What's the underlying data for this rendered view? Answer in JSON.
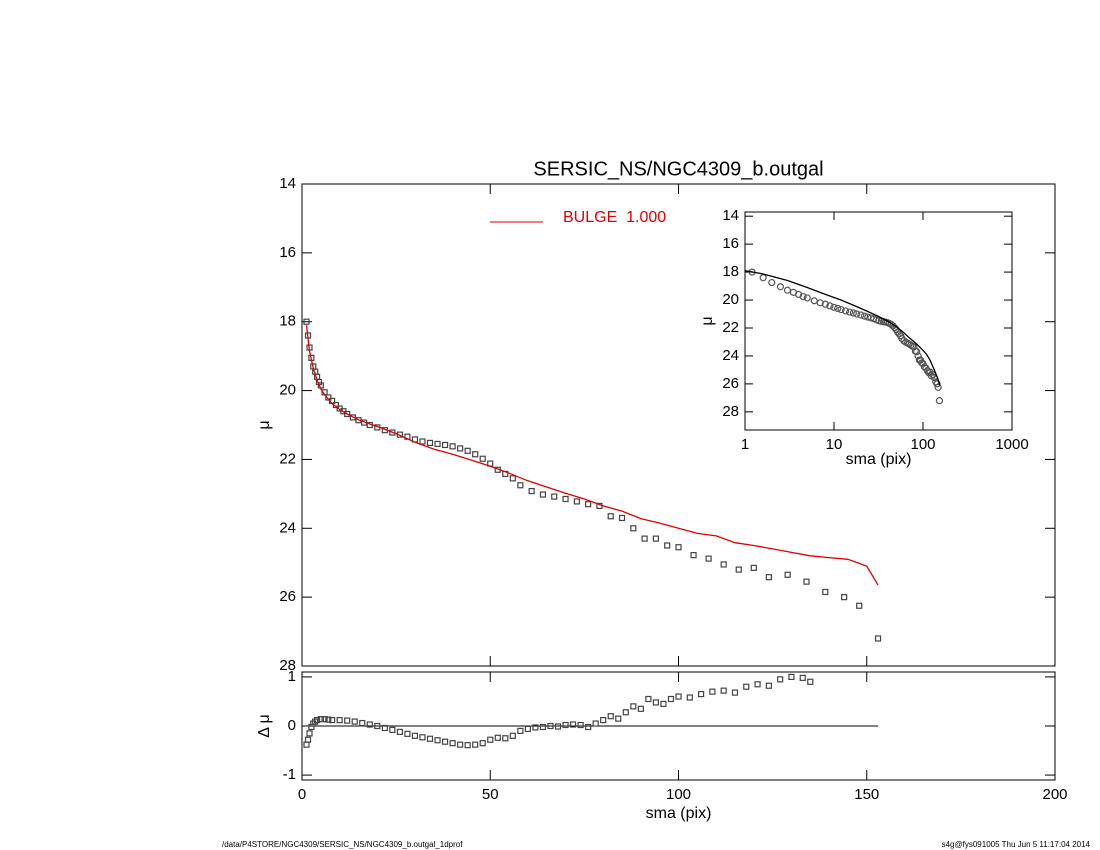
{
  "chart_data": [
    {
      "type": "scatter",
      "title": "SERSIC_NS/NGC4309_b.outgal",
      "ylabel": "μ",
      "xlim": [
        0,
        200
      ],
      "xticks": [
        0,
        50,
        100,
        150,
        200
      ],
      "ylim": [
        14,
        28
      ],
      "y_inverted": true,
      "yticks": [
        14,
        16,
        18,
        20,
        22,
        24,
        26,
        28
      ],
      "legend": "top-center",
      "series": [
        {
          "marker": "square",
          "color": "#444444",
          "x": [
            1.2,
            1.6,
            2,
            2.5,
            3,
            3.5,
            4,
            4.5,
            5,
            6,
            7,
            8,
            9,
            10,
            11,
            12,
            13.5,
            15,
            16.5,
            18,
            20,
            22,
            24,
            26,
            28,
            30,
            32,
            34,
            36,
            38,
            40,
            42,
            44,
            46,
            48,
            50,
            52,
            54,
            56,
            58,
            61,
            64,
            67,
            70,
            73,
            76,
            79,
            82,
            85,
            88,
            91,
            94,
            97,
            100,
            104,
            108,
            112,
            116,
            120,
            124,
            129,
            134,
            139,
            144,
            148,
            153
          ],
          "values": [
            18.0,
            18.4,
            18.75,
            19.05,
            19.3,
            19.45,
            19.6,
            19.75,
            19.85,
            20.05,
            20.2,
            20.3,
            20.42,
            20.52,
            20.6,
            20.68,
            20.78,
            20.86,
            20.93,
            21.0,
            21.07,
            21.15,
            21.22,
            21.28,
            21.34,
            21.42,
            21.48,
            21.52,
            21.55,
            21.58,
            21.62,
            21.68,
            21.75,
            21.85,
            21.98,
            22.12,
            22.3,
            22.42,
            22.55,
            22.75,
            22.92,
            23.02,
            23.08,
            23.15,
            23.22,
            23.3,
            23.35,
            23.65,
            23.7,
            24.0,
            24.3,
            24.3,
            24.5,
            24.55,
            24.78,
            24.88,
            25.05,
            25.2,
            25.15,
            25.42,
            25.35,
            25.55,
            25.85,
            26.0,
            26.25,
            27.2
          ]
        },
        {
          "name": "BULGE  1.000",
          "style": "line",
          "color": "#e00000",
          "x": [
            1.2,
            2,
            3,
            4,
            5,
            6,
            8,
            10,
            12,
            15,
            18,
            21,
            25,
            30,
            35,
            40,
            45,
            50,
            55,
            60,
            65,
            70,
            75,
            80,
            85,
            90,
            95,
            100,
            105,
            110,
            115,
            120,
            125,
            130,
            135,
            140,
            145,
            150,
            153
          ],
          "values": [
            18.1,
            18.85,
            19.35,
            19.7,
            19.95,
            20.12,
            20.38,
            20.55,
            20.68,
            20.85,
            20.97,
            21.08,
            21.25,
            21.5,
            21.7,
            21.85,
            22.02,
            22.2,
            22.4,
            22.62,
            22.8,
            22.98,
            23.15,
            23.35,
            23.5,
            23.72,
            23.85,
            24.0,
            24.15,
            24.22,
            24.42,
            24.5,
            24.6,
            24.7,
            24.8,
            24.85,
            24.9,
            25.1,
            25.65
          ]
        }
      ]
    },
    {
      "type": "scatter",
      "xlabel": "sma (pix)",
      "ylabel": "Δ μ",
      "xlim": [
        0,
        200
      ],
      "xticks": [
        0,
        50,
        100,
        150,
        200
      ],
      "ylim": [
        -1.1,
        1.1
      ],
      "yticks": [
        -1,
        0,
        1
      ],
      "zero_line": {
        "y": 0,
        "x": [
          0,
          153
        ]
      },
      "series": [
        {
          "marker": "square",
          "color": "#444444",
          "x": [
            1.2,
            1.6,
            2,
            2.5,
            3,
            3.5,
            4,
            5,
            6,
            7,
            8,
            10,
            12,
            14,
            16,
            18,
            20,
            22,
            24,
            26,
            28,
            30,
            32,
            34,
            36,
            38,
            40,
            42,
            44,
            46,
            48,
            50,
            52,
            54,
            56,
            58,
            60,
            62,
            64,
            66,
            68,
            70,
            72,
            74,
            76,
            78,
            80,
            82,
            84,
            86,
            88,
            90,
            92,
            94,
            96,
            98,
            100,
            103,
            106,
            109,
            112,
            115,
            118,
            121,
            124,
            127,
            130,
            133,
            135
          ],
          "values": [
            -0.38,
            -0.28,
            -0.15,
            -0.02,
            0.05,
            0.09,
            0.12,
            0.14,
            0.14,
            0.13,
            0.12,
            0.12,
            0.11,
            0.09,
            0.06,
            0.03,
            0.0,
            -0.04,
            -0.08,
            -0.12,
            -0.16,
            -0.2,
            -0.23,
            -0.26,
            -0.29,
            -0.32,
            -0.35,
            -0.38,
            -0.39,
            -0.38,
            -0.35,
            -0.28,
            -0.24,
            -0.25,
            -0.2,
            -0.1,
            -0.06,
            -0.03,
            -0.02,
            0.0,
            -0.01,
            0.02,
            0.03,
            0.02,
            -0.02,
            0.05,
            0.12,
            0.2,
            0.15,
            0.28,
            0.4,
            0.35,
            0.55,
            0.48,
            0.45,
            0.55,
            0.6,
            0.58,
            0.65,
            0.7,
            0.72,
            0.68,
            0.8,
            0.85,
            0.82,
            0.95,
            1.0,
            0.98,
            0.9
          ]
        }
      ]
    },
    {
      "type": "scatter",
      "xlabel": "sma (pix)",
      "ylabel": "μ",
      "xlog": true,
      "xlim": [
        1,
        1000
      ],
      "xticks": [
        1,
        10,
        100,
        1000
      ],
      "ylim": [
        13.7,
        29.3
      ],
      "y_inverted": true,
      "yticks": [
        14,
        16,
        18,
        20,
        22,
        24,
        26,
        28
      ],
      "series": [
        {
          "marker": "circle",
          "color": "#555555",
          "x": [
            1.2,
            1.6,
            2,
            2.5,
            3,
            3.5,
            4,
            4.5,
            5,
            6,
            7,
            8,
            9,
            10,
            11,
            12,
            13.5,
            15,
            16.5,
            18,
            20,
            22,
            24,
            26,
            28,
            30,
            32,
            34,
            36,
            38,
            40,
            42,
            44,
            46,
            48,
            50,
            52,
            54,
            56,
            58,
            61,
            64,
            67,
            70,
            73,
            76,
            79,
            82,
            85,
            88,
            91,
            94,
            97,
            100,
            104,
            108,
            112,
            116,
            120,
            124,
            129,
            134,
            139,
            144,
            148,
            153
          ],
          "values": [
            18.0,
            18.4,
            18.75,
            19.05,
            19.3,
            19.45,
            19.6,
            19.75,
            19.85,
            20.05,
            20.2,
            20.3,
            20.42,
            20.52,
            20.6,
            20.68,
            20.78,
            20.86,
            20.93,
            21.0,
            21.07,
            21.15,
            21.22,
            21.28,
            21.34,
            21.42,
            21.48,
            21.52,
            21.55,
            21.58,
            21.62,
            21.68,
            21.75,
            21.85,
            21.98,
            22.12,
            22.3,
            22.42,
            22.55,
            22.75,
            22.92,
            23.02,
            23.08,
            23.15,
            23.22,
            23.3,
            23.35,
            23.65,
            23.7,
            24.0,
            24.3,
            24.3,
            24.5,
            24.55,
            24.78,
            24.88,
            25.05,
            25.2,
            25.15,
            25.42,
            25.35,
            25.55,
            25.85,
            26.0,
            26.25,
            27.2
          ]
        },
        {
          "style": "line",
          "color": "#000000",
          "x": [
            1,
            1.5,
            2,
            3,
            5,
            8,
            12,
            20,
            30,
            40,
            50,
            60,
            70,
            80,
            90,
            100,
            110,
            120,
            130,
            140,
            150,
            155
          ],
          "values": [
            17.9,
            18.1,
            18.3,
            18.6,
            19.1,
            19.6,
            20.0,
            20.6,
            21.1,
            21.5,
            21.9,
            22.3,
            22.7,
            23.0,
            23.3,
            23.6,
            23.9,
            24.3,
            24.8,
            25.3,
            25.8,
            26.1
          ]
        }
      ]
    }
  ],
  "footer": {
    "left": "/data/P4STORE/NGC4309/SERSIC_NS/NGC4309_b.outgal_1dprof",
    "right": "s4g@fys091005  Thu Jun  5 11:17:04 2014"
  }
}
